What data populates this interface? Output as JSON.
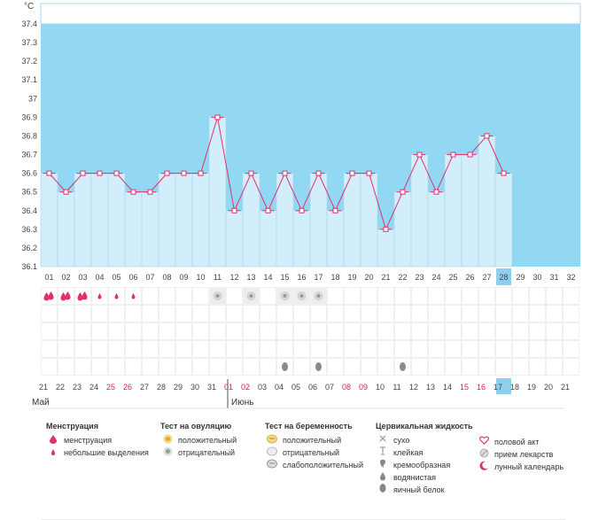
{
  "chart_data": {
    "type": "line",
    "unit_label": "°C",
    "y_ticks": [
      "37.4",
      "37.3",
      "37.2",
      "37.1",
      "37",
      "36.9",
      "36.8",
      "36.7",
      "36.6",
      "36.5",
      "36.4",
      "36.3",
      "36.2",
      "36.1"
    ],
    "ylim": [
      36.1,
      37.4
    ],
    "cycle_days": [
      "01",
      "02",
      "03",
      "04",
      "05",
      "06",
      "07",
      "08",
      "09",
      "10",
      "11",
      "12",
      "13",
      "14",
      "15",
      "16",
      "17",
      "18",
      "19",
      "20",
      "21",
      "22",
      "23",
      "24",
      "25",
      "26",
      "27",
      "28",
      "29",
      "30",
      "31",
      "32"
    ],
    "temperatures": [
      36.6,
      36.5,
      36.6,
      36.6,
      36.6,
      36.5,
      36.5,
      36.6,
      36.6,
      36.6,
      36.9,
      36.4,
      36.6,
      36.4,
      36.6,
      36.4,
      36.6,
      36.4,
      36.6,
      36.6,
      36.3,
      36.5,
      36.7,
      36.5,
      36.7,
      36.7,
      36.8,
      36.6
    ],
    "current_day_index": 27,
    "menstruation": [
      "heavy",
      "heavy",
      "heavy",
      "light",
      "light",
      "light"
    ],
    "ovulation_negative_days": [
      11,
      13,
      15,
      16,
      17
    ],
    "mucus_days": [
      15,
      17,
      22
    ],
    "dates": [
      "21",
      "22",
      "23",
      "24",
      "25",
      "26",
      "27",
      "28",
      "29",
      "30",
      "31",
      "01",
      "02",
      "03",
      "04",
      "05",
      "06",
      "07",
      "08",
      "09",
      "10",
      "11",
      "12",
      "13",
      "14",
      "15",
      "16",
      "17",
      "18",
      "19",
      "20",
      "21"
    ],
    "date_weekend": [
      false,
      false,
      false,
      false,
      true,
      true,
      false,
      false,
      false,
      false,
      false,
      true,
      true,
      false,
      false,
      false,
      false,
      false,
      true,
      true,
      false,
      false,
      false,
      false,
      false,
      true,
      true,
      false,
      false,
      false,
      false,
      false
    ],
    "month_start": "Май",
    "month_next": "Июнь",
    "colors": {
      "sky": "#93d8f2",
      "bar": "#d3eefb",
      "bar_edge": "#a6d5ee",
      "line": "#e0306e",
      "highlight": "#8ecfee"
    }
  },
  "legend": {
    "menstruation": {
      "title": "Менструация",
      "items": [
        "менструация",
        "небольшие выделения"
      ]
    },
    "ovulation": {
      "title": "Тест на овуляцию",
      "items": [
        "положительный",
        "отрицательный"
      ]
    },
    "pregnancy": {
      "title": "Тест на беременность",
      "items": [
        "положительный",
        "отрицательный",
        "слабоположительный"
      ]
    },
    "mucus": {
      "title": "Цервикальная жидкость",
      "items": [
        "сухо",
        "клейкая",
        "кремообразная",
        "водянистая",
        "яичный белок"
      ]
    },
    "other": {
      "items": [
        "половой акт",
        "прием лекарств",
        "лунный календарь"
      ]
    }
  }
}
